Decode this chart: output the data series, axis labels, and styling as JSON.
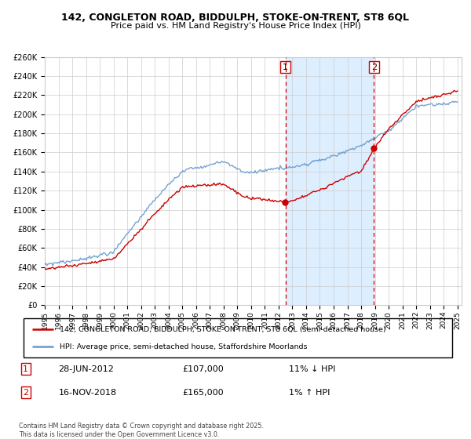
{
  "title_line1": "142, CONGLETON ROAD, BIDDULPH, STOKE-ON-TRENT, ST8 6QL",
  "title_line2": "Price paid vs. HM Land Registry's House Price Index (HPI)",
  "ylabel_ticks": [
    "£0",
    "£20K",
    "£40K",
    "£60K",
    "£80K",
    "£100K",
    "£120K",
    "£140K",
    "£160K",
    "£180K",
    "£200K",
    "£220K",
    "£240K",
    "£260K"
  ],
  "ytick_values": [
    0,
    20000,
    40000,
    60000,
    80000,
    100000,
    120000,
    140000,
    160000,
    180000,
    200000,
    220000,
    240000,
    260000
  ],
  "year_start": 1995,
  "year_end": 2025,
  "vline1_year": 2012.5,
  "vline2_year": 2018.92,
  "vline1_label": "1",
  "vline2_label": "2",
  "purchase1_year": 2012.5,
  "purchase1_price_val": 107000,
  "purchase2_year": 2018.92,
  "purchase2_price_val": 165000,
  "purchase1_date": "28-JUN-2012",
  "purchase1_price": "£107,000",
  "purchase1_hpi": "11% ↓ HPI",
  "purchase2_date": "16-NOV-2018",
  "purchase2_price": "£165,000",
  "purchase2_hpi": "1% ↑ HPI",
  "legend_line1": "142, CONGLETON ROAD, BIDDULPH, STOKE-ON-TRENT, ST8 6QL (semi-detached house)",
  "legend_line2": "HPI: Average price, semi-detached house, Staffordshire Moorlands",
  "footer": "Contains HM Land Registry data © Crown copyright and database right 2025.\nThis data is licensed under the Open Government Licence v3.0.",
  "red_color": "#cc0000",
  "blue_color": "#6699cc",
  "highlight_color": "#ddeeff",
  "background_color": "#ffffff",
  "grid_color": "#cccccc"
}
